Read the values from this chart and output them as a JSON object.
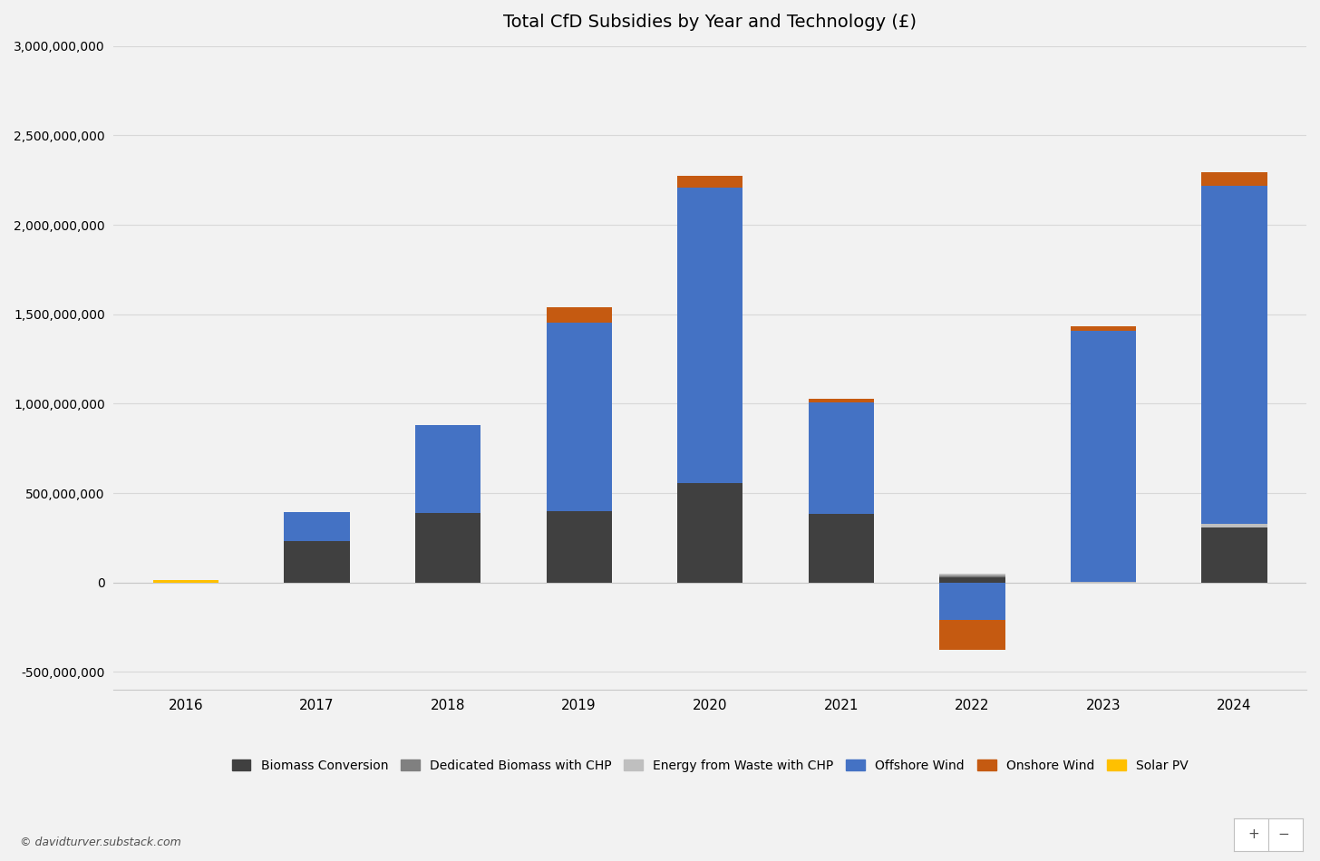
{
  "title": "Total CfD Subsidies by Year and Technology (£)",
  "years": [
    2016,
    2017,
    2018,
    2019,
    2020,
    2021,
    2022,
    2023,
    2024
  ],
  "technologies": [
    "Biomass Conversion",
    "Dedicated Biomass with CHP",
    "Energy from Waste with CHP",
    "Offshore Wind",
    "Onshore Wind",
    "Solar PV"
  ],
  "colors": {
    "Biomass Conversion": "#404040",
    "Dedicated Biomass with CHP": "#808080",
    "Energy from Waste with CHP": "#BFBFBF",
    "Offshore Wind": "#4472C4",
    "Onshore Wind": "#C55A11",
    "Solar PV": "#FFC000"
  },
  "data": {
    "Biomass Conversion": [
      0,
      230000000,
      390000000,
      400000000,
      555000000,
      385000000,
      30000000,
      0,
      310000000
    ],
    "Dedicated Biomass with CHP": [
      0,
      0,
      0,
      0,
      0,
      0,
      10000000,
      0,
      0
    ],
    "Energy from Waste with CHP": [
      0,
      0,
      0,
      0,
      0,
      0,
      10000000,
      5000000,
      20000000
    ],
    "Offshore Wind": [
      0,
      165000000,
      490000000,
      1055000000,
      1655000000,
      620000000,
      -210000000,
      1405000000,
      1890000000
    ],
    "Onshore Wind": [
      0,
      0,
      0,
      85000000,
      65000000,
      20000000,
      -165000000,
      25000000,
      75000000
    ],
    "Solar PV": [
      15000000,
      0,
      0,
      0,
      0,
      0,
      0,
      0,
      0
    ]
  },
  "ylim": [
    -600000000,
    3000000000
  ],
  "yticks": [
    -500000000,
    0,
    500000000,
    1000000000,
    1500000000,
    2000000000,
    2500000000,
    3000000000
  ],
  "watermark": "© davidturver.substack.com",
  "background_color": "#F2F2F2"
}
